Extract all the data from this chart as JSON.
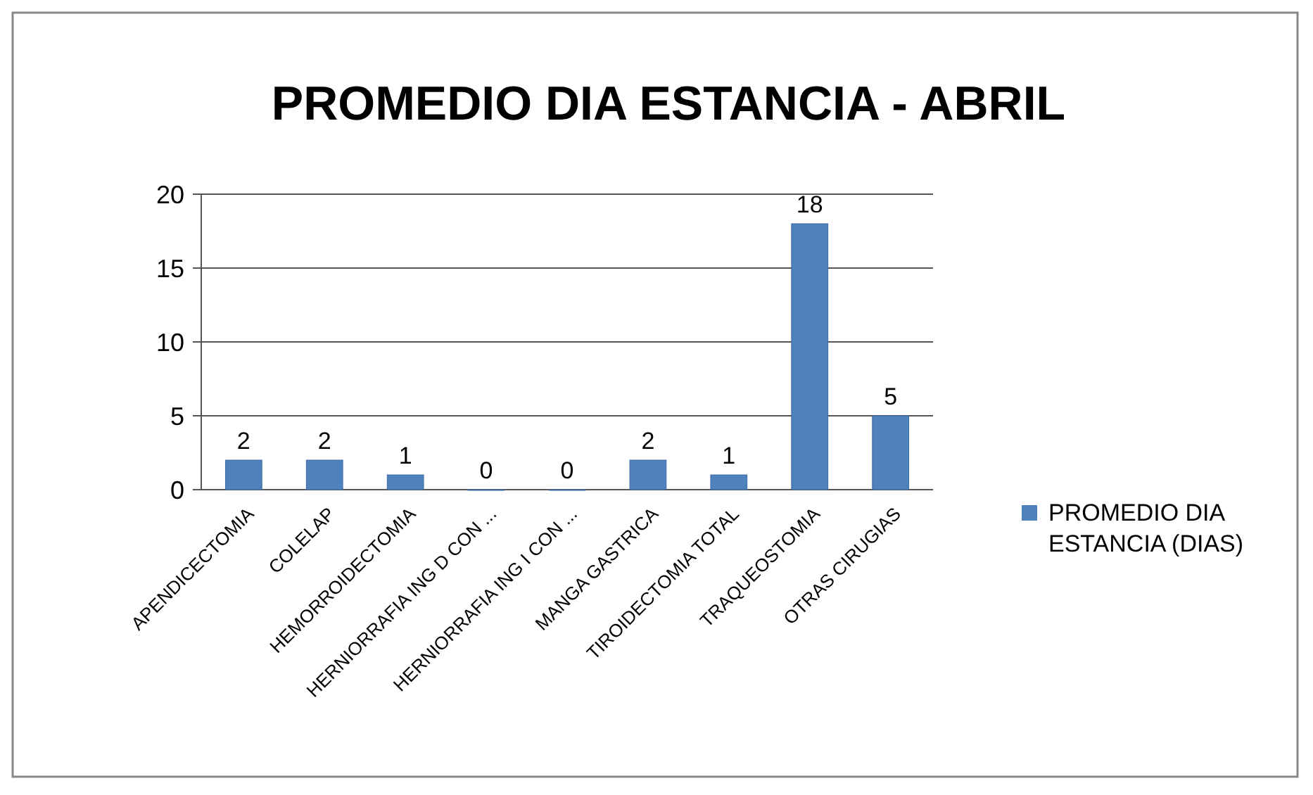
{
  "chart_data": {
    "type": "bar",
    "title": "PROMEDIO DIA ESTANCIA - ABRIL",
    "categories": [
      "APENDICECTOMIA",
      "COLELAP",
      "HEMORROIDECTOMIA",
      "HERNIORRAFIA ING D CON ...",
      "HERNIORRAFIA ING I CON ...",
      "MANGA GASTRICA",
      "TIROIDECTOMIA TOTAL",
      "TRAQUEOSTOMIA",
      "OTRAS CIRUGIAS"
    ],
    "series": [
      {
        "name": "PROMEDIO DIA ESTANCIA (DIAS)",
        "color": "#4f81bd",
        "values": [
          2,
          2,
          1,
          0,
          0,
          2,
          1,
          18,
          5
        ]
      }
    ],
    "ylim": [
      0,
      20
    ],
    "yticks": [
      0,
      5,
      10,
      15,
      20
    ],
    "grid": "y",
    "legend": "right",
    "data_labels": true
  }
}
